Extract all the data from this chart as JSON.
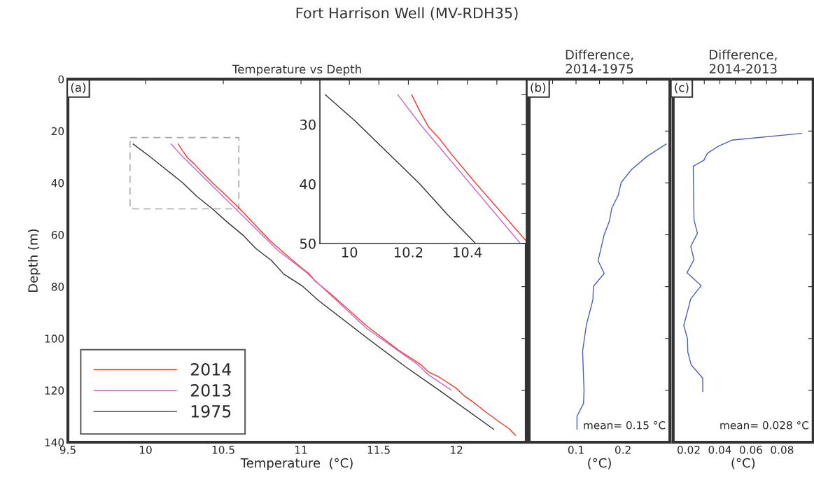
{
  "chart_data": [
    {
      "type": "line",
      "title": "Fort Harrison Well (MV-RDH35)",
      "subtitle": "Temperature vs Depth",
      "xlabel": "Temperature  (°C)",
      "ylabel": "Depth (m)",
      "xlim": [
        9.5,
        12.45
      ],
      "ylim": [
        140,
        0
      ],
      "xticks": [
        9.5,
        10,
        10.5,
        11,
        11.5,
        12
      ],
      "yticks": [
        0,
        20,
        40,
        60,
        80,
        100,
        120,
        140
      ],
      "legend": "bottom left",
      "annotations": [
        "(a)"
      ],
      "series": [
        {
          "name": "2014",
          "color": "#ff3020",
          "x": [
            10.21,
            10.24,
            10.27,
            10.31,
            10.35,
            10.43,
            10.51,
            10.6,
            10.8,
            10.875,
            11.0,
            11.05,
            11.09,
            11.19,
            11.42,
            11.63,
            11.77,
            11.82,
            11.89,
            12.0,
            12.05,
            12.11,
            12.19,
            12.28,
            12.34,
            12.38
          ],
          "values": [
            25,
            27.8,
            30.3,
            32.5,
            35,
            39.9,
            44.4,
            49.6,
            62.2,
            66.2,
            72.6,
            74.9,
            77.8,
            82.7,
            95,
            104.6,
            110,
            112.9,
            114.9,
            119.2,
            122.1,
            124.6,
            128.4,
            132.3,
            134.8,
            137.3
          ]
        },
        {
          "name": "2013",
          "color": "#cc66cc",
          "x": [
            10.164,
            10.24,
            10.58,
            10.85,
            11.03,
            11.42,
            11.75,
            11.82,
            11.965
          ],
          "values": [
            25,
            30,
            50,
            66,
            74.3,
            96,
            110,
            114,
            119.8
          ]
        },
        {
          "name": "1975",
          "color": "#333333",
          "x": [
            9.92,
            10.02,
            10.24,
            10.33,
            10.43,
            10.525,
            10.63,
            10.71,
            10.81,
            10.89,
            11.01,
            11.11,
            11.42,
            11.67,
            11.89,
            12.24
          ],
          "values": [
            25,
            29.5,
            40,
            45.2,
            50,
            55.1,
            60.3,
            65.3,
            69.9,
            75.2,
            79.8,
            85.2,
            99.6,
            110.8,
            120,
            135
          ]
        }
      ]
    },
    {
      "type": "line",
      "xlim": [
        9.9,
        10.6
      ],
      "ylim": [
        50,
        22.5
      ],
      "xticks": [
        10,
        {
          "value": 10.1,
          "label": null
        },
        10.2,
        {
          "value": 10.3,
          "label": null
        },
        10.4,
        {
          "value": 10.5,
          "label": null
        }
      ],
      "yticks": [
        {
          "value": 25,
          "label": null
        },
        30,
        {
          "value": 35,
          "label": null
        },
        40,
        {
          "value": 45,
          "label": null
        },
        50
      ],
      "series": [
        {
          "color": "#ff3020",
          "x": [
            10.211,
            10.239,
            10.267,
            10.307,
            10.346,
            10.429,
            10.6
          ],
          "values": [
            25,
            27.8,
            30.3,
            32.5,
            35,
            39.9,
            49.6
          ]
        },
        {
          "color": "#cc66cc",
          "x": [
            10.164,
            10.239,
            10.58
          ],
          "values": [
            25,
            29.9,
            50
          ]
        },
        {
          "color": "#333333",
          "x": [
            9.918,
            10.017,
            10.239,
            10.33,
            10.428
          ],
          "values": [
            25,
            29.3,
            40,
            45,
            50
          ]
        }
      ]
    },
    {
      "type": "line",
      "title": "Difference,\n2014-1975",
      "xlabel": "(°C)",
      "xlim": [
        0,
        0.3
      ],
      "ylim": [
        140,
        0
      ],
      "xticks": [
        {
          "value": 0.05,
          "label": null
        },
        0.1,
        {
          "value": 0.15,
          "label": null
        },
        0.2,
        {
          "value": 0.25,
          "label": null
        }
      ],
      "yticks": [
        0,
        20,
        40,
        60,
        80,
        100,
        120,
        140
      ],
      "tick_labels": "x",
      "annotations": [
        "(b)",
        "mean= 0.15 °C"
      ],
      "series": [
        {
          "color": "#4a5fc1",
          "x": [
            0.292,
            0.251,
            0.218,
            0.196,
            0.19,
            0.176,
            0.171,
            0.16,
            0.147,
            0.16,
            0.137,
            0.136,
            0.122,
            0.114,
            0.117,
            0.116,
            0.102,
            0.102
          ],
          "values": [
            25,
            29.8,
            34.9,
            39.9,
            44.7,
            49.8,
            54.8,
            59.9,
            70,
            74.9,
            79.9,
            85,
            94.8,
            104.9,
            119.9,
            125,
            130,
            135
          ]
        }
      ]
    },
    {
      "type": "line",
      "title": "Difference,\n2014-2013",
      "xlabel": "(°C)",
      "xlim": [
        0.01,
        0.1
      ],
      "ylim": [
        140,
        0
      ],
      "xticks": [
        0.02,
        {
          "value": 0.03,
          "label": null
        },
        0.04,
        {
          "value": 0.05,
          "label": null
        },
        0.06,
        {
          "value": 0.07,
          "label": null
        },
        0.08,
        {
          "value": 0.09,
          "label": null
        }
      ],
      "yticks": [
        0,
        20,
        40,
        60,
        80,
        100,
        120,
        140
      ],
      "tick_labels": "x",
      "annotations": [
        "(c)",
        "mean= 0.028 °C"
      ],
      "series": [
        {
          "color": "#4a5fc1",
          "x": [
            0.0925,
            0.0477,
            0.0389,
            0.032,
            0.0298,
            0.0229,
            0.0234,
            0.0256,
            0.0213,
            0.0234,
            0.0189,
            0.028,
            0.0213,
            0.0168,
            0.0192,
            0.0194,
            0.0216,
            0.029,
            0.029
          ],
          "values": [
            20.9,
            23.5,
            25.9,
            28.6,
            31.2,
            33.6,
            54.3,
            59.4,
            64.5,
            69.6,
            74.6,
            79.6,
            84.7,
            95,
            100.1,
            105.2,
            110.2,
            115.3,
            120.5
          ]
        }
      ]
    }
  ]
}
